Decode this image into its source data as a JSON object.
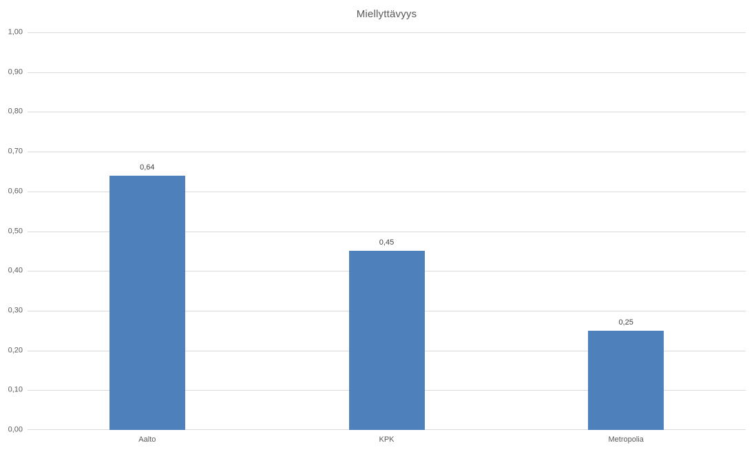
{
  "chart_data": {
    "type": "bar",
    "title": "Miellyttävyys",
    "categories": [
      "Aalto",
      "KPK",
      "Metropolia"
    ],
    "values": [
      0.64,
      0.45,
      0.25
    ],
    "data_labels": [
      "0,64",
      "0,45",
      "0,25"
    ],
    "y_ticks": [
      "1,00",
      "0,90",
      "0,80",
      "0,70",
      "0,60",
      "0,50",
      "0,40",
      "0,30",
      "0,20",
      "0,10",
      "0,00"
    ],
    "ylim": [
      0,
      1
    ],
    "xlabel": "",
    "ylabel": "",
    "grid": true,
    "legend": "none",
    "bar_color": "#4e80bc",
    "gridline_color": "#d9d9d9",
    "axis_line_color": "#d9d9d9",
    "title_color": "#595959",
    "tick_label_color": "#595959",
    "data_label_color": "#404040",
    "background_color": "#ffffff"
  }
}
